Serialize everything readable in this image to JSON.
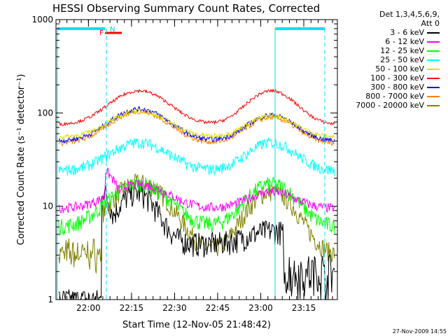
{
  "chart_data": {
    "type": "line",
    "title": "HESSI Observing Summary Count Rates, Corrected",
    "xlabel": "Start Time (12-Nov-05 21:48:42)",
    "ylabel": "Corrected Count Rate (s⁻¹ detector⁻¹)",
    "yscale": "log",
    "ylim": [
      1,
      1000
    ],
    "ytick_labels": [
      "1",
      "10",
      "100",
      "1000"
    ],
    "ytick_values": [
      1,
      10,
      100,
      1000
    ],
    "xtick_labels": [
      "22:00",
      "22:15",
      "22:30",
      "22:45",
      "23:00",
      "23:15"
    ],
    "xtick_minutes": [
      11.3,
      26.3,
      41.3,
      56.3,
      71.3,
      86.3
    ],
    "xlim_minutes": [
      0,
      98
    ],
    "legend_header": [
      "Det 1,3,4,5,6,9,",
      "Att 0"
    ],
    "series": [
      {
        "name": "3 - 6 keV",
        "color": "#000000"
      },
      {
        "name": "6 - 12 keV",
        "color": "#ff00ff"
      },
      {
        "name": "12 - 25 keV",
        "color": "#00ff00"
      },
      {
        "name": "25 - 50 keV",
        "color": "#00ffff"
      },
      {
        "name": "50 - 100 keV",
        "color": "#e0e000"
      },
      {
        "name": "100 - 300 keV",
        "color": "#ff0000"
      },
      {
        "name": "300 - 800 keV",
        "color": "#0000ff"
      },
      {
        "name": "800 - 7000 keV",
        "color": "#ff8000"
      },
      {
        "name": "7000 - 20000 keV",
        "color": "#808000"
      }
    ],
    "annotations": {
      "F": "F",
      "N": "N"
    },
    "footer_date": "27-Nov-2009 14:55"
  }
}
